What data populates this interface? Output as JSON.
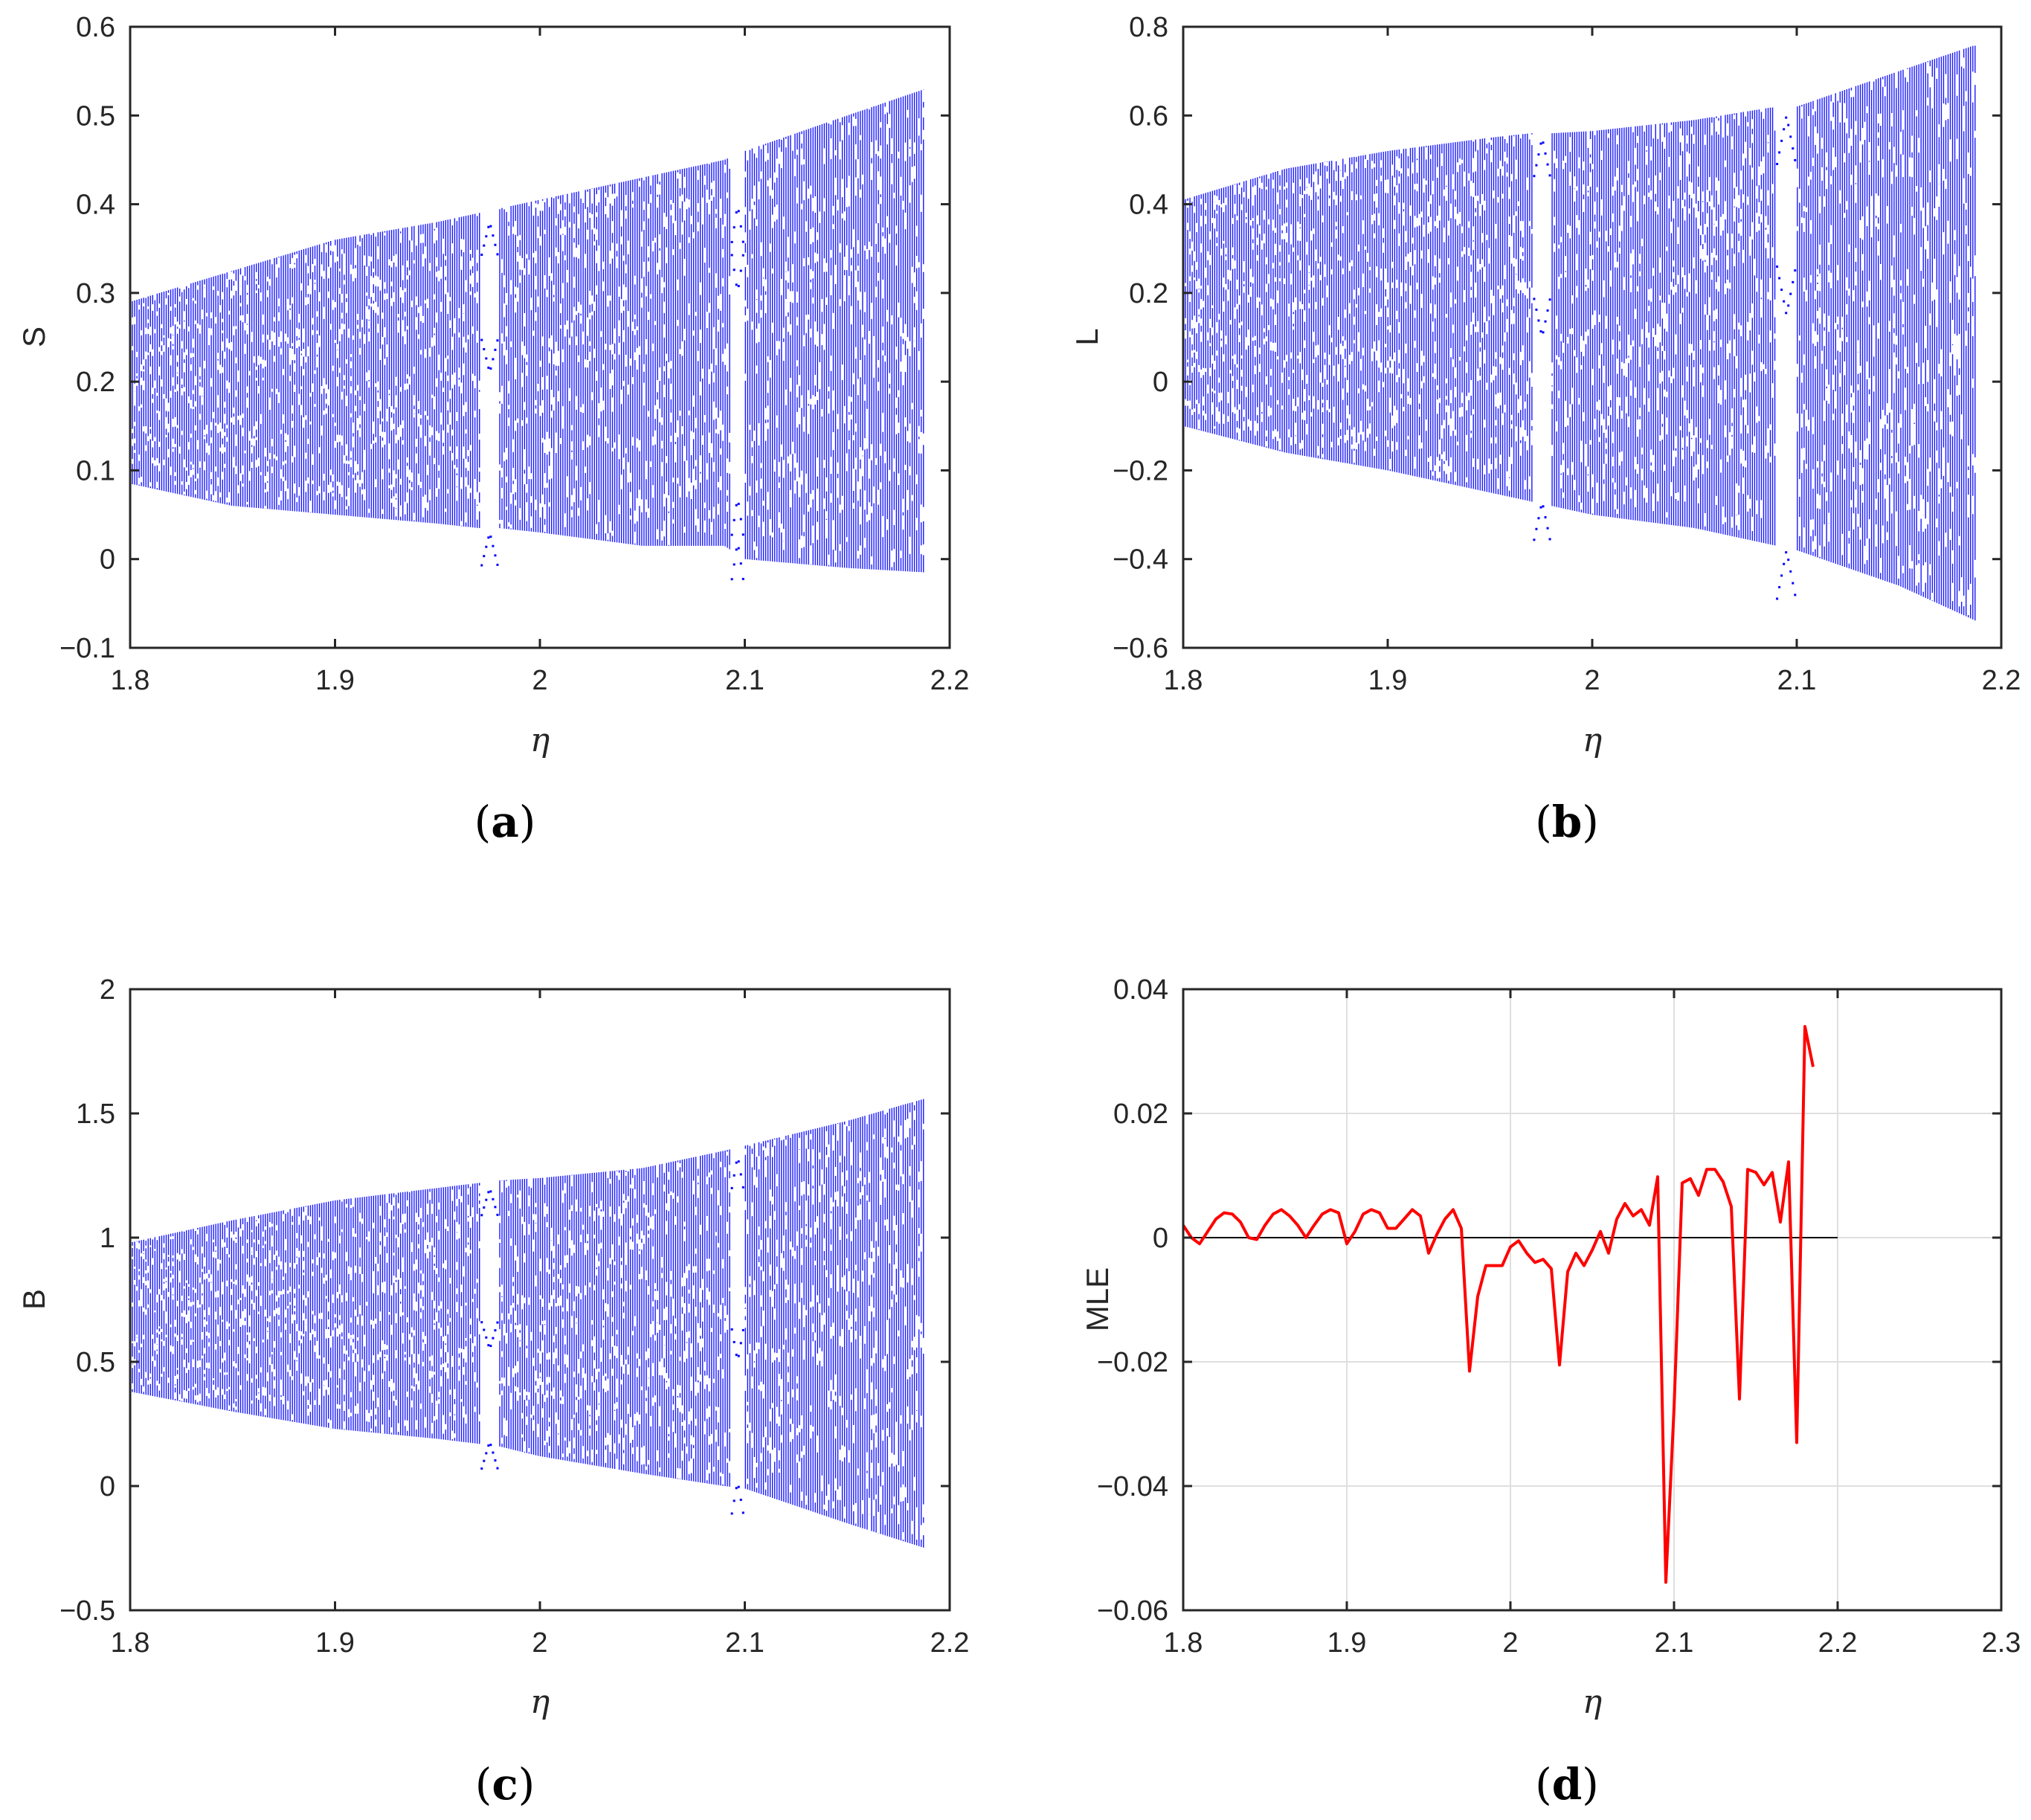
{
  "colors": {
    "bifurcation": "#0000ff",
    "mle_line": "#ff0000",
    "zero_line": "#000000",
    "axis": "#262626",
    "grid": "#dfdfdf"
  },
  "chart_data": [
    {
      "id": "a",
      "type": "scatter",
      "title": "",
      "panel_label": "a",
      "xlabel": "η",
      "ylabel": "S",
      "xlim": [
        1.8,
        2.2
      ],
      "ylim": [
        -0.1,
        0.6
      ],
      "xticks": [
        1.8,
        1.9,
        2.0,
        2.1,
        2.2
      ],
      "xtick_labels": [
        "1.8",
        "1.9",
        "2",
        "2.1",
        "2.2"
      ],
      "yticks": [
        -0.1,
        0,
        0.1,
        0.2,
        0.3,
        0.4,
        0.5,
        0.6
      ],
      "ytick_labels": [
        "−0.1",
        "0",
        "0.1",
        "0.2",
        "0.3",
        "0.4",
        "0.5",
        "0.6"
      ],
      "grid": false,
      "envelope": {
        "x": [
          1.8,
          1.85,
          1.9,
          1.95,
          1.97,
          1.98,
          2.0,
          2.05,
          2.09,
          2.1,
          2.15,
          2.188
        ],
        "upper": [
          0.29,
          0.325,
          0.36,
          0.38,
          0.39,
          0.395,
          0.405,
          0.43,
          0.45,
          0.46,
          0.5,
          0.53
        ],
        "lower": [
          0.085,
          0.06,
          0.05,
          0.04,
          0.035,
          0.035,
          0.03,
          0.015,
          0.015,
          0.0,
          -0.01,
          -0.015
        ]
      },
      "windows": [
        {
          "x_start": 1.971,
          "x_end": 1.98,
          "branches": [
            0.38,
            0.21,
            0.03
          ]
        },
        {
          "x_start": 2.093,
          "x_end": 2.1,
          "branches": [
            0.4,
            0.3,
            0.07,
            0.02
          ]
        }
      ]
    },
    {
      "id": "b",
      "type": "scatter",
      "title": "",
      "panel_label": "b",
      "xlabel": "η",
      "ylabel": "L",
      "xlim": [
        1.8,
        2.2
      ],
      "ylim": [
        -0.6,
        0.8
      ],
      "xticks": [
        1.8,
        1.9,
        2.0,
        2.1,
        2.2
      ],
      "xtick_labels": [
        "1.8",
        "1.9",
        "2",
        "2.1",
        "2.2"
      ],
      "yticks": [
        -0.6,
        -0.4,
        -0.2,
        0,
        0.2,
        0.4,
        0.6,
        0.8
      ],
      "ytick_labels": [
        "−0.6",
        "−0.4",
        "−0.2",
        "0",
        "0.2",
        "0.4",
        "0.6",
        "0.8"
      ],
      "grid": false,
      "envelope": {
        "x": [
          1.8,
          1.85,
          1.9,
          1.95,
          1.97,
          1.98,
          2.0,
          2.05,
          2.09,
          2.1,
          2.15,
          2.188
        ],
        "upper": [
          0.41,
          0.48,
          0.52,
          0.55,
          0.56,
          0.56,
          0.565,
          0.59,
          0.62,
          0.62,
          0.7,
          0.76
        ],
        "lower": [
          -0.1,
          -0.16,
          -0.2,
          -0.25,
          -0.27,
          -0.28,
          -0.3,
          -0.33,
          -0.37,
          -0.38,
          -0.46,
          -0.54
        ]
      },
      "windows": [
        {
          "x_start": 1.971,
          "x_end": 1.98,
          "branches": [
            0.55,
            0.1,
            -0.27
          ]
        },
        {
          "x_start": 2.09,
          "x_end": 2.1,
          "branches": [
            0.6,
            0.15,
            -0.38
          ]
        }
      ]
    },
    {
      "id": "c",
      "type": "scatter",
      "title": "",
      "panel_label": "c",
      "xlabel": "η",
      "ylabel": "B",
      "xlim": [
        1.8,
        2.2
      ],
      "ylim": [
        -0.5,
        2.0
      ],
      "xticks": [
        1.8,
        1.9,
        2.0,
        2.1,
        2.2
      ],
      "xtick_labels": [
        "1.8",
        "1.9",
        "2",
        "2.1",
        "2.2"
      ],
      "yticks": [
        -0.5,
        0,
        0.5,
        1.0,
        1.5,
        2.0
      ],
      "ytick_labels": [
        "−0.5",
        "0",
        "0.5",
        "1",
        "1.5",
        "2"
      ],
      "grid": false,
      "envelope": {
        "x": [
          1.8,
          1.85,
          1.9,
          1.95,
          1.97,
          1.98,
          2.0,
          2.05,
          2.09,
          2.1,
          2.15,
          2.188
        ],
        "upper": [
          0.98,
          1.07,
          1.15,
          1.2,
          1.22,
          1.23,
          1.24,
          1.28,
          1.35,
          1.37,
          1.47,
          1.56
        ],
        "lower": [
          0.38,
          0.3,
          0.23,
          0.19,
          0.17,
          0.16,
          0.12,
          0.05,
          0.0,
          -0.01,
          -0.15,
          -0.25
        ]
      },
      "windows": [
        {
          "x_start": 1.971,
          "x_end": 1.98,
          "branches": [
            1.2,
            0.55,
            0.18
          ]
        },
        {
          "x_start": 2.093,
          "x_end": 2.1,
          "branches": [
            1.33,
            0.5,
            0.02
          ]
        }
      ]
    },
    {
      "id": "d",
      "type": "line",
      "title": "",
      "panel_label": "d",
      "xlabel": "η",
      "ylabel": "MLE",
      "xlim": [
        1.8,
        2.3
      ],
      "ylim": [
        -0.06,
        0.04
      ],
      "xticks": [
        1.8,
        1.9,
        2.0,
        2.1,
        2.2,
        2.3
      ],
      "xtick_labels": [
        "1.8",
        "1.9",
        "2",
        "2.1",
        "2.2",
        "2.3"
      ],
      "yticks": [
        -0.06,
        -0.04,
        -0.02,
        0,
        0.02,
        0.04
      ],
      "ytick_labels": [
        "−0.06",
        "−0.04",
        "−0.02",
        "0",
        "0.02",
        "0.04"
      ],
      "grid": true,
      "reference_line": {
        "y": 0,
        "x_start": 1.8,
        "x_end": 2.2
      },
      "series": [
        {
          "name": "MLE",
          "x": [
            1.8,
            1.805,
            1.81,
            1.815,
            1.82,
            1.825,
            1.83,
            1.835,
            1.84,
            1.845,
            1.85,
            1.855,
            1.86,
            1.865,
            1.87,
            1.875,
            1.88,
            1.885,
            1.89,
            1.895,
            1.9,
            1.905,
            1.91,
            1.915,
            1.92,
            1.925,
            1.93,
            1.935,
            1.94,
            1.945,
            1.95,
            1.955,
            1.96,
            1.965,
            1.97,
            1.975,
            1.98,
            1.985,
            1.99,
            1.995,
            2.0,
            2.005,
            2.01,
            2.015,
            2.02,
            2.025,
            2.03,
            2.035,
            2.04,
            2.045,
            2.05,
            2.055,
            2.06,
            2.065,
            2.07,
            2.075,
            2.08,
            2.085,
            2.09,
            2.095,
            2.1,
            2.105,
            2.11,
            2.115,
            2.12,
            2.125,
            2.13,
            2.135,
            2.14,
            2.145,
            2.15,
            2.155,
            2.16,
            2.165,
            2.17,
            2.175,
            2.18,
            2.185
          ],
          "values": [
            0.002,
            0.0,
            -0.001,
            0.001,
            0.003,
            0.004,
            0.0038,
            0.0025,
            0.0,
            -0.0003,
            0.002,
            0.0038,
            0.0045,
            0.0035,
            0.002,
            0.0,
            0.002,
            0.0038,
            0.0045,
            0.004,
            -0.001,
            0.001,
            0.0038,
            0.0045,
            0.004,
            0.0015,
            0.0015,
            0.003,
            0.0045,
            0.0035,
            -0.0025,
            0.0005,
            0.003,
            0.0045,
            0.0015,
            -0.0215,
            -0.0095,
            -0.0045,
            -0.0045,
            -0.0045,
            -0.0015,
            -0.0005,
            -0.0025,
            -0.004,
            -0.0035,
            -0.005,
            -0.0205,
            -0.0055,
            -0.0025,
            -0.0045,
            -0.002,
            0.001,
            -0.0025,
            0.003,
            0.0055,
            0.0035,
            0.0045,
            0.002,
            0.0098,
            -0.0555,
            -0.0275,
            0.0088,
            0.0095,
            0.0068,
            0.011,
            0.011,
            0.009,
            0.005,
            -0.026,
            0.011,
            0.0105,
            0.0085,
            0.0105,
            0.0025,
            0.0122,
            -0.033,
            0.034,
            0.0275
          ]
        }
      ]
    }
  ]
}
